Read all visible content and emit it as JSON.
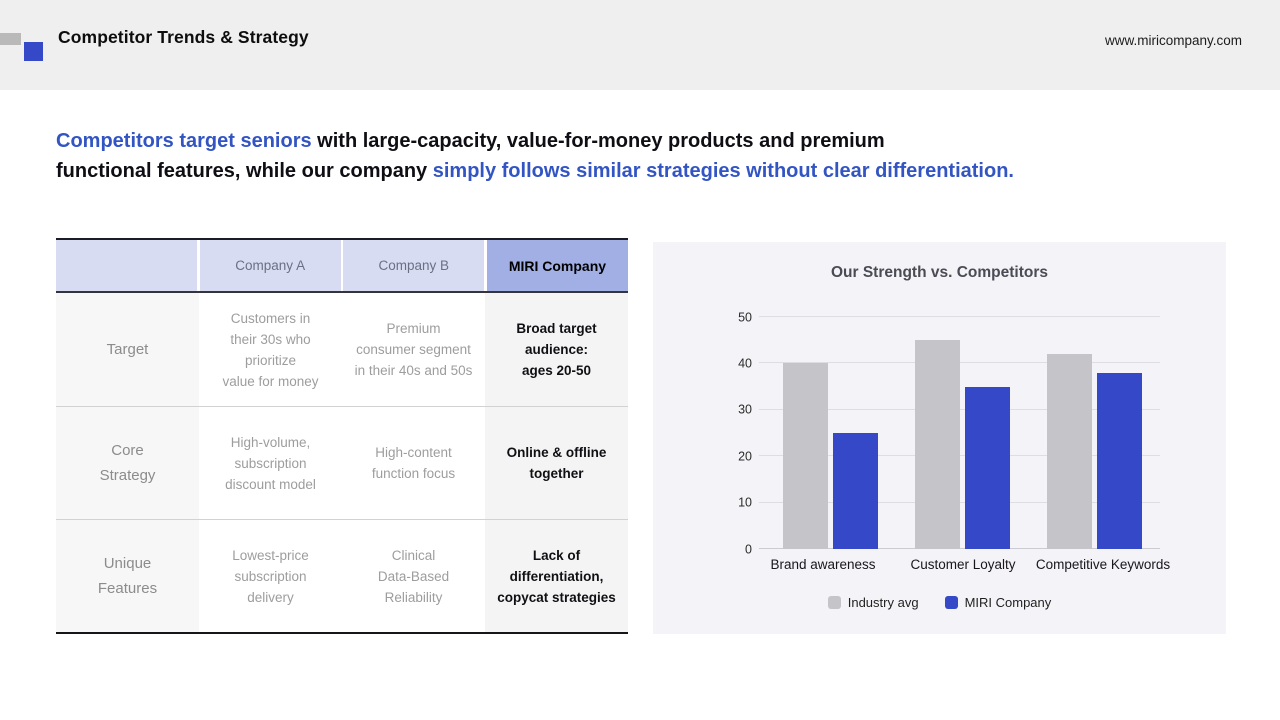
{
  "header": {
    "title": "Competitor Trends & Strategy",
    "url": "www.miricompany.com"
  },
  "headline": {
    "line1": [
      {
        "text": "Competitors target seniors",
        "accent": true
      },
      {
        "text": " with large-capacity, value-for-money products and premium",
        "accent": false
      }
    ],
    "line2": [
      {
        "text": "functional features, while our company ",
        "accent": false
      },
      {
        "text": "simply follows similar strategies without clear differentiation.",
        "accent": true
      }
    ]
  },
  "comparison_table": {
    "columns": [
      "",
      "Company A",
      "Company B",
      "MIRI Company"
    ],
    "rows": [
      {
        "label": "Target",
        "cells": [
          "Customers in\ntheir 30s who\nprioritize\nvalue for money",
          "Premium\nconsumer segment\nin their 40s and 50s",
          "Broad target\naudience:\nages 20-50"
        ]
      },
      {
        "label": "Core\nStrategy",
        "cells": [
          "High-volume,\nsubscription\ndiscount model",
          "High-content\nfunction focus",
          "Online & offline\ntogether"
        ]
      },
      {
        "label": "Unique\nFeatures",
        "cells": [
          "Lowest-price\nsubscription\ndelivery",
          "Clinical\nData-Based\nReliability",
          "Lack of\ndifferentiation,\ncopycat strategies"
        ]
      }
    ]
  },
  "chart_data": {
    "type": "bar",
    "title": "Our Strength vs. Competitors",
    "categories": [
      "Brand awareness",
      "Customer Loyalty",
      "Competitive Keywords"
    ],
    "series": [
      {
        "name": "Industry avg",
        "color": "#c5c4c8",
        "values": [
          40,
          45,
          42
        ]
      },
      {
        "name": "MIRI Company",
        "color": "#3448c8",
        "values": [
          25,
          35,
          38
        ]
      }
    ],
    "xlabel": "",
    "ylabel": "",
    "ylim": [
      0,
      50
    ],
    "yticks": [
      0,
      10,
      20,
      30,
      40,
      50
    ],
    "grid": true,
    "legend_position": "bottom"
  },
  "colors": {
    "accent_blue": "#3355c4",
    "bar_blue": "#3448c8",
    "bar_gray": "#c5c4c8",
    "table_header_lavender": "#d8dcf2",
    "table_header_periwinkle": "#a2afe4",
    "chart_panel_bg": "#f4f3f7",
    "topbar_bg": "#efefef"
  }
}
